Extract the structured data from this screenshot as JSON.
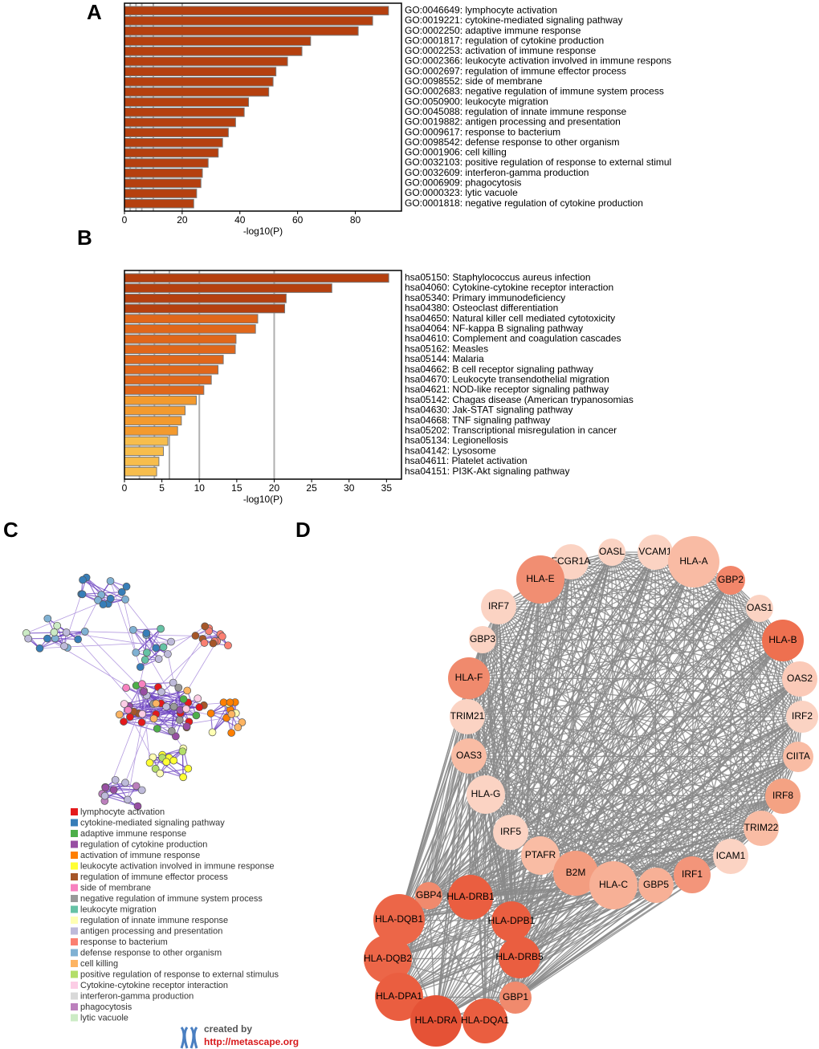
{
  "panel_labels": [
    "A",
    "B",
    "C",
    "D"
  ],
  "chart_data": [
    {
      "type": "bar",
      "orientation": "horizontal",
      "xlabel": "-log10(P)",
      "color": "#b5400f",
      "categories": [
        "GO:0046649: lymphocyte activation",
        "GO:0019221: cytokine-mediated signaling pathway",
        "GO:0002250: adaptive immune response",
        "GO:0001817: regulation of cytokine production",
        "GO:0002253: activation of immune response",
        "GO:0002366: leukocyte activation involved in immune respons",
        "GO:0002697: regulation of immune effector process",
        "GO:0098552: side of membrane",
        "GO:0002683: negative regulation of immune system process",
        "GO:0050900: leukocyte migration",
        "GO:0045088: regulation of innate immune response",
        "GO:0019882: antigen processing and presentation",
        "GO:0009617: response to bacterium",
        "GO:0098542: defense response to other organism",
        "GO:0001906: cell killing",
        "GO:0032103: positive regulation of response to external stimul",
        "GO:0032609: interferon-gamma production",
        "GO:0006909: phagocytosis",
        "GO:0000323: lytic vacuole",
        "GO:0001818: negative regulation of cytokine production"
      ],
      "values": [
        91.5,
        86,
        81,
        64.5,
        61.5,
        56.5,
        52.5,
        51.5,
        50,
        43,
        41.5,
        38.5,
        36,
        34,
        32.5,
        29,
        27,
        26.5,
        25,
        24
      ],
      "xlim": [
        0,
        96
      ],
      "xticks": [
        0,
        20,
        40,
        60,
        80
      ],
      "reference_lines": [
        2,
        4,
        6,
        10,
        20
      ]
    },
    {
      "type": "bar",
      "orientation": "horizontal",
      "xlabel": "-log10(P)",
      "categories": [
        "hsa05150: Staphylococcus aureus infection",
        "hsa04060: Cytokine-cytokine receptor interaction",
        "hsa05340: Primary immunodeficiency",
        "hsa04380: Osteoclast differentiation",
        "hsa04650: Natural killer cell mediated cytotoxicity",
        "hsa04064: NF-kappa B signaling pathway",
        "hsa04610: Complement and coagulation cascades",
        "hsa05162: Measles",
        "hsa05144: Malaria",
        "hsa04662: B cell receptor signaling pathway",
        "hsa04670: Leukocyte transendothelial migration",
        "hsa04621: NOD-like receptor signaling pathway",
        "hsa05142: Chagas disease (American trypanosomias",
        "hsa04630: Jak-STAT signaling pathway",
        "hsa04668: TNF signaling pathway",
        "hsa05202: Transcriptional misregulation in cancer",
        "hsa05134: Legionellosis",
        "hsa04142: Lysosome",
        "hsa04611: Platelet activation",
        "hsa04151: PI3K-Akt signaling pathway"
      ],
      "values": [
        35.3,
        27.7,
        21.6,
        21.4,
        17.8,
        17.5,
        14.9,
        14.8,
        13.2,
        12.5,
        11.6,
        10.6,
        9.6,
        8.1,
        7.6,
        7.1,
        5.8,
        5.2,
        4.6,
        4.3
      ],
      "colors": [
        "#b5400f",
        "#b5400f",
        "#b5400f",
        "#b5400f",
        "#e0671b",
        "#e0671b",
        "#e0671b",
        "#e0671b",
        "#e0671b",
        "#e0671b",
        "#e0671b",
        "#e0671b",
        "#f39a2e",
        "#f39a2e",
        "#f39a2e",
        "#f39a2e",
        "#f7bd4c",
        "#f7bd4c",
        "#f7bd4c",
        "#f7bd4c"
      ],
      "xlim": [
        0,
        37
      ],
      "xticks": [
        0,
        5,
        10,
        15,
        20,
        25,
        30,
        35
      ],
      "reference_lines": [
        2,
        4,
        6,
        10,
        20
      ]
    }
  ],
  "network_c": {
    "legend": [
      {
        "label": "lymphocyte activation",
        "color": "#e41a1c"
      },
      {
        "label": "cytokine-mediated signaling pathway",
        "color": "#377eb8"
      },
      {
        "label": "adaptive immune response",
        "color": "#4daf4a"
      },
      {
        "label": "regulation of cytokine production",
        "color": "#984ea3"
      },
      {
        "label": "activation of immune response",
        "color": "#ff7f00"
      },
      {
        "label": "leukocyte activation involved in immune response",
        "color": "#ffff33"
      },
      {
        "label": "regulation of immune effector process",
        "color": "#a65628"
      },
      {
        "label": "side of membrane",
        "color": "#f781bf"
      },
      {
        "label": "negative regulation of immune system process",
        "color": "#999999"
      },
      {
        "label": "leukocyte migration",
        "color": "#66c2a5"
      },
      {
        "label": "regulation of innate immune response",
        "color": "#ffffb3"
      },
      {
        "label": "antigen processing and presentation",
        "color": "#bebada"
      },
      {
        "label": "response to bacterium",
        "color": "#fb8072"
      },
      {
        "label": "defense response to other organism",
        "color": "#80b1d3"
      },
      {
        "label": "cell killing",
        "color": "#fdb462"
      },
      {
        "label": "positive regulation of response to external stimulus",
        "color": "#b3de69"
      },
      {
        "label": "Cytokine-cytokine receptor interaction",
        "color": "#fccde5"
      },
      {
        "label": "interferon-gamma production",
        "color": "#d9d9d9"
      },
      {
        "label": "phagocytosis",
        "color": "#bc80bd"
      },
      {
        "label": "lytic vacuole",
        "color": "#ccebc5"
      }
    ],
    "credit": "created by",
    "url": "http://metascape.org"
  },
  "network_d": {
    "edge_color": "#8a8a8a",
    "nodes": [
      {
        "label": "OASL",
        "color": "#fbd3c3"
      },
      {
        "label": "VCAM1",
        "color": "#fbd3c3"
      },
      {
        "label": "HLA-A",
        "color": "#f9bba4"
      },
      {
        "label": "FCGR1A",
        "color": "#fbd3c3"
      },
      {
        "label": "GBP2",
        "color": "#f2866a"
      },
      {
        "label": "HLA-E",
        "color": "#f18e72"
      },
      {
        "label": "IRF7",
        "color": "#fbd3c3"
      },
      {
        "label": "OAS1",
        "color": "#fbd3c3"
      },
      {
        "label": "GBP3",
        "color": "#fbd3c3"
      },
      {
        "label": "HLA-B",
        "color": "#ee7050"
      },
      {
        "label": "HLA-F",
        "color": "#f08a6d"
      },
      {
        "label": "OAS2",
        "color": "#fbcab8"
      },
      {
        "label": "TRIM21",
        "color": "#fbd3c3"
      },
      {
        "label": "IRF2",
        "color": "#fbd3c3"
      },
      {
        "label": "OAS3",
        "color": "#f9bca4"
      },
      {
        "label": "CIITA",
        "color": "#f9bca4"
      },
      {
        "label": "HLA-G",
        "color": "#fbd3c3"
      },
      {
        "label": "IRF8",
        "color": "#f4a283"
      },
      {
        "label": "IRF5",
        "color": "#fbd3c3"
      },
      {
        "label": "TRIM22",
        "color": "#f9bca4"
      },
      {
        "label": "PTAFR",
        "color": "#f9bca4"
      },
      {
        "label": "ICAM1",
        "color": "#fbd3c3"
      },
      {
        "label": "B2M",
        "color": "#f39d80"
      },
      {
        "label": "HLA-C",
        "color": "#f7b096"
      },
      {
        "label": "GBP5",
        "color": "#f7b096"
      },
      {
        "label": "IRF1",
        "color": "#f3957a"
      },
      {
        "label": "GBP4",
        "color": "#f08a6d"
      },
      {
        "label": "HLA-DRB1",
        "color": "#ea5e40"
      },
      {
        "label": "HLA-DQB1",
        "color": "#ec6648"
      },
      {
        "label": "HLA-DPB1",
        "color": "#ea5e40"
      },
      {
        "label": "HLA-DQB2",
        "color": "#ec6648"
      },
      {
        "label": "HLA-DRB5",
        "color": "#ea5e40"
      },
      {
        "label": "HLA-DPA1",
        "color": "#ea5e40"
      },
      {
        "label": "GBP1",
        "color": "#f08a6d"
      },
      {
        "label": "HLA-DRA",
        "color": "#e55236"
      },
      {
        "label": "HLA-DQA1",
        "color": "#ea5e40"
      }
    ]
  }
}
